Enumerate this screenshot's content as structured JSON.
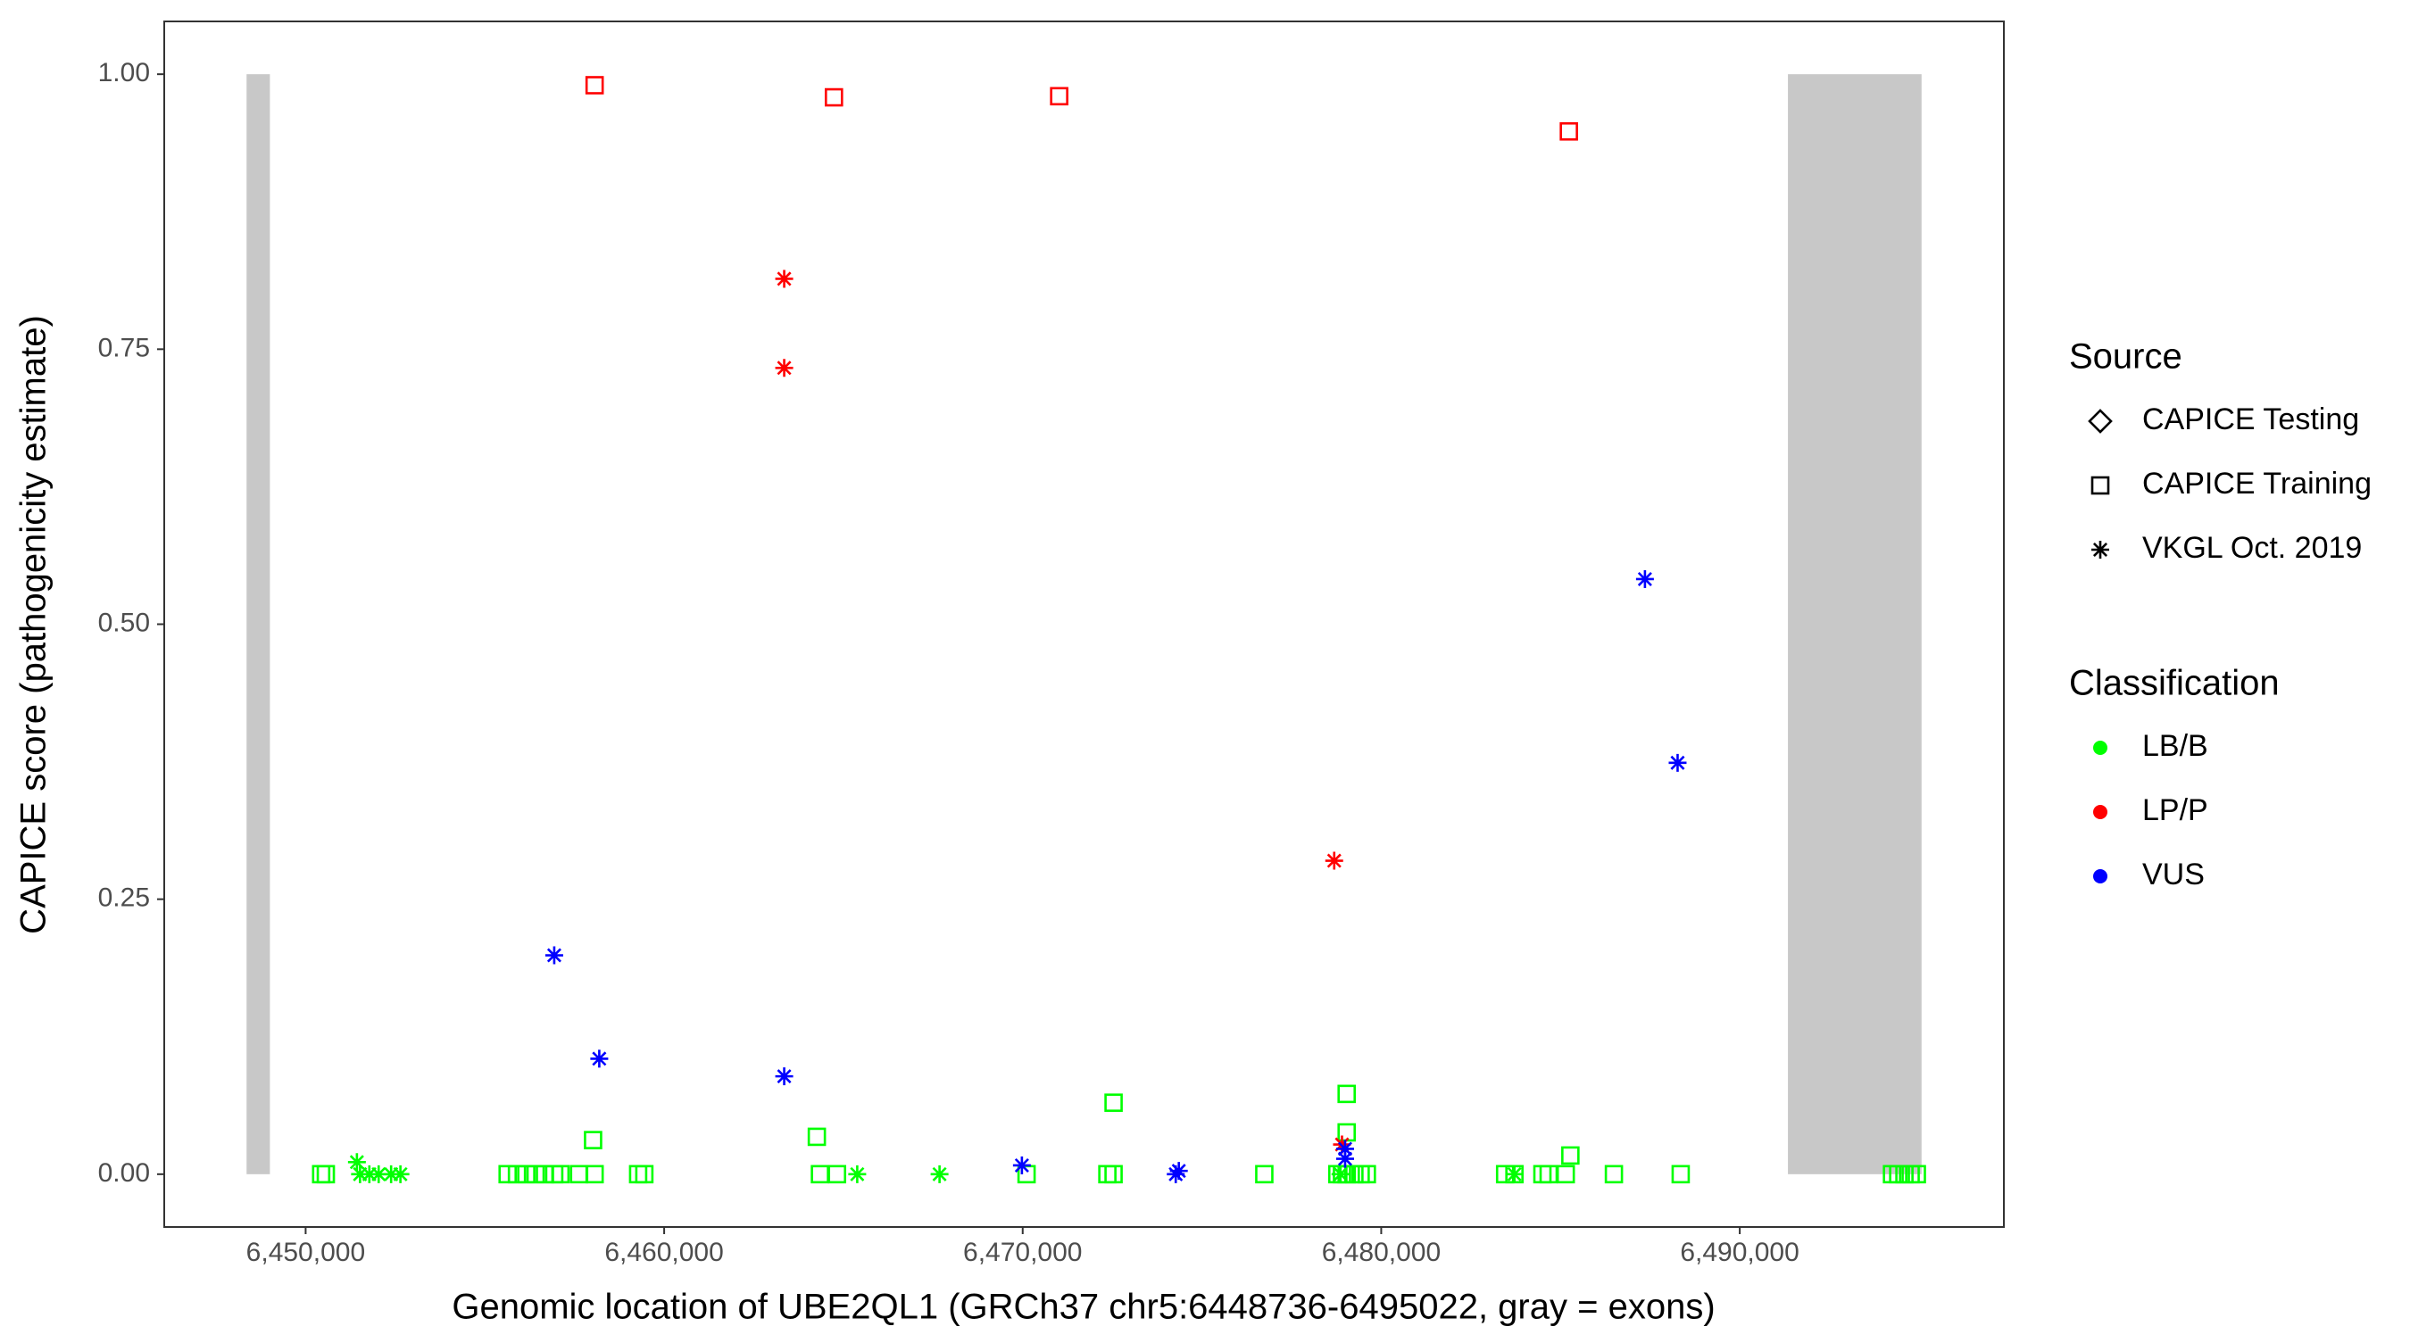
{
  "chart_data": {
    "type": "scatter",
    "x_label": "Genomic location of UBE2QL1 (GRCh37 chr5:6448736-6495022, gray = exons)",
    "y_label": "CAPICE score (pathogenicity estimate)",
    "xlim": [
      6446056,
      6497367
    ],
    "ylim": [
      -0.048,
      1.048
    ],
    "xticks": [
      {
        "value": 6450000,
        "label": "6,450,000"
      },
      {
        "value": 6460000,
        "label": "6,460,000"
      },
      {
        "value": 6470000,
        "label": "6,470,000"
      },
      {
        "value": 6480000,
        "label": "6,480,000"
      },
      {
        "value": 6490000,
        "label": "6,490,000"
      }
    ],
    "yticks": [
      {
        "value": 0,
        "label": "0.00"
      },
      {
        "value": 0.25,
        "label": "0.25"
      },
      {
        "value": 0.5,
        "label": "0.50"
      },
      {
        "value": 0.75,
        "label": "0.75"
      },
      {
        "value": 1,
        "label": "1.00"
      }
    ],
    "grid": false,
    "exon_color": "#c8c8c8",
    "exons": [
      {
        "start": 6448353,
        "end": 6449003
      },
      {
        "start": 6491344,
        "end": 6495071
      }
    ],
    "legends": [
      {
        "title": "Source",
        "entries": [
          {
            "label": "CAPICE Testing",
            "shape": "diamond"
          },
          {
            "label": "CAPICE Training",
            "shape": "square"
          },
          {
            "label": "VKGL Oct. 2019",
            "shape": "star"
          }
        ]
      },
      {
        "title": "Classification",
        "entries": [
          {
            "label": "LB/B",
            "color": "#00ff00"
          },
          {
            "label": "LP/P",
            "color": "#ff0000"
          },
          {
            "label": "VUS",
            "color": "#0000ff"
          }
        ]
      }
    ],
    "series": [
      {
        "shape": "square",
        "color": "#00ff00",
        "x": [
          6450433,
          6450563,
          6455634,
          6455894,
          6456154,
          6456414,
          6456674,
          6456934,
          6457107,
          6457627,
          6458060,
          6459274,
          6459447,
          6464345,
          6464821,
          6470108,
          6472362,
          6472535,
          6476739,
          6478776,
          6478906,
          6479036,
          6479252,
          6479426,
          6479599,
          6483456,
          6483716,
          6484496,
          6484670,
          6485147,
          6486490,
          6488353,
          6494247,
          6494420,
          6494594,
          6494767,
          6494940,
          6458017,
          6464258,
          6472535,
          6479036,
          6479036,
          6485276
        ],
        "y": [
          0,
          0,
          0,
          0,
          0,
          0,
          0,
          0,
          0,
          0,
          0,
          0,
          0,
          0,
          0,
          0,
          0,
          0,
          0,
          0,
          0,
          0,
          0,
          0,
          0,
          0,
          0,
          0,
          0,
          0,
          0,
          0,
          0,
          0,
          0,
          0,
          0,
          0.031,
          0.034,
          0.065,
          0.073,
          0.038,
          0.017
        ]
      },
      {
        "shape": "square",
        "color": "#ff0000",
        "x": [
          6458060,
          6464735,
          6471018,
          6485234
        ],
        "y": [
          0.99,
          0.979,
          0.98,
          0.948
        ]
      },
      {
        "shape": "star",
        "color": "#00ff00",
        "x": [
          6451430,
          6451517,
          6451777,
          6452037,
          6452384,
          6452644,
          6465385,
          6467681,
          6483716,
          6478863
        ],
        "y": [
          0.011,
          0,
          0,
          0,
          0,
          0,
          0,
          0,
          0,
          0
        ]
      },
      {
        "shape": "star",
        "color": "#ff0000",
        "x": [
          6463348,
          6463348,
          6478689,
          6478906
        ],
        "y": [
          0.814,
          0.733,
          0.285,
          0.027
        ]
      },
      {
        "shape": "star",
        "color": "#0000ff",
        "x": [
          6456934,
          6458190,
          6463348,
          6469978,
          6474269,
          6474355,
          6478993,
          6478993,
          6487356,
          6488267
        ],
        "y": [
          0.199,
          0.105,
          0.089,
          0.008,
          0,
          0.003,
          0.023,
          0.014,
          0.541,
          0.374
        ]
      }
    ]
  }
}
